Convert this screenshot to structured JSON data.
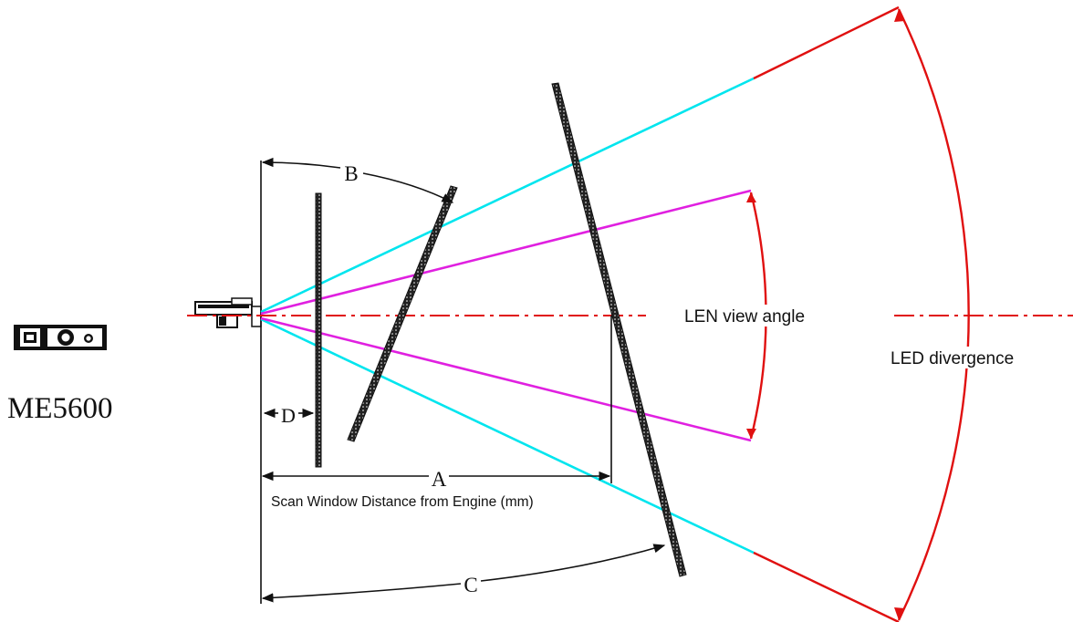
{
  "product": {
    "model": "ME5600",
    "icon": "scan-engine-icon"
  },
  "labels": {
    "a": "A",
    "b": "B",
    "c": "C",
    "d": "D",
    "scan_window_distance": "Scan Window Distance from Engine (mm)",
    "len_view_angle": "LEN view angle",
    "led_divergence": "LED divergence"
  },
  "colors": {
    "led_beam": "#00e5ee",
    "lens_beam": "#e020e0",
    "arc_and_axis": "#e01010",
    "lines": "#111111"
  }
}
